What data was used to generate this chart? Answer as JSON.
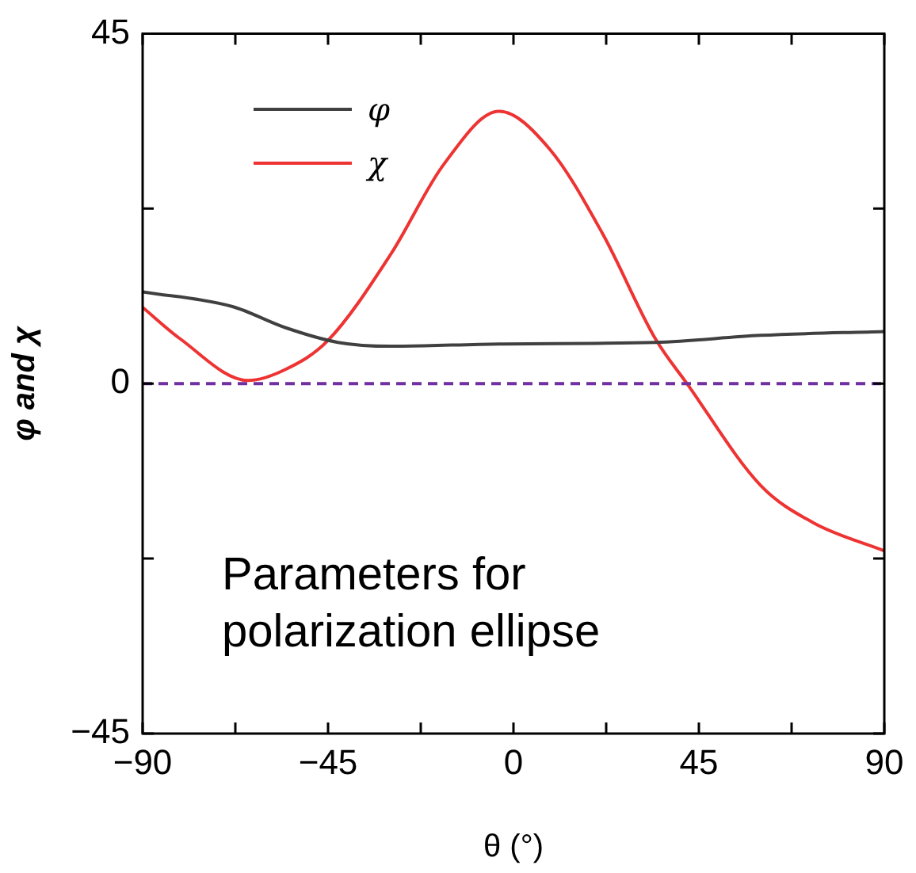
{
  "chart_data": {
    "type": "line",
    "xlabel": "θ (°)",
    "ylabel": "φ and χ",
    "xlim": [
      -90,
      90
    ],
    "xticks": [
      {
        "value": -90,
        "label": "−90"
      },
      {
        "value": -67.5,
        "label": null
      },
      {
        "value": -45,
        "label": "−45"
      },
      {
        "value": -22.5,
        "label": null
      },
      0,
      {
        "value": 22.5,
        "label": null
      },
      45,
      {
        "value": 67.5,
        "label": null
      },
      90
    ],
    "ylim": [
      -45,
      45
    ],
    "yticks": [
      {
        "value": -45,
        "label": "−45"
      },
      {
        "value": -22.5,
        "label": null
      },
      0,
      {
        "value": 22.5,
        "label": null
      },
      45
    ],
    "series": [
      {
        "name": "φ",
        "color": "#404040",
        "x": [
          -90,
          -68.2,
          -55.4,
          -42.6,
          -29.7,
          -3.5,
          34.4,
          60,
          90
        ],
        "values": [
          11.8,
          9.9,
          7.2,
          5.3,
          4.8,
          5.1,
          5.3,
          6.2,
          6.7
        ]
      },
      {
        "name": "χ",
        "color": "#ee3333",
        "x": [
          -90,
          -81,
          -64.4,
          -55.4,
          -45.1,
          -29.7,
          -16.9,
          -3.5,
          8.7,
          21.5,
          34.4,
          42.1,
          60,
          72.8,
          90
        ],
        "values": [
          9.8,
          5.8,
          0.4,
          1.8,
          5.5,
          16.7,
          28.2,
          35,
          30.2,
          19.4,
          5.8,
          0,
          -13.1,
          -17.9,
          -21.5
        ]
      }
    ],
    "ref_lines": [
      {
        "axis": "y",
        "value": 0,
        "color": "#7030a0",
        "line_style": "dashed"
      }
    ],
    "legend": "top left",
    "grid": false,
    "marker": "none",
    "line_style": "solid",
    "annotations": [
      "Parameters for polarization ellipse"
    ]
  }
}
